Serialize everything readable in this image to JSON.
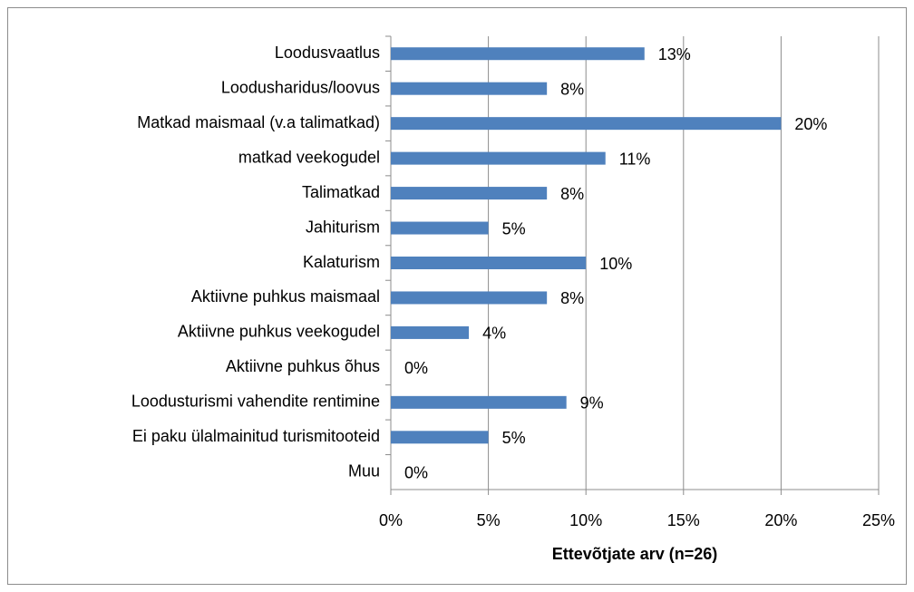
{
  "chart_data": {
    "type": "barh",
    "xlabel": "Ettevõtjate arv (n=26)",
    "categories": [
      "Loodusvaatlus",
      "Loodusharidus/loovus",
      "Matkad maismaal (v.a talimatkad)",
      "matkad veekogudel",
      "Talimatkad",
      "Jahiturism",
      "Kalaturism",
      "Aktiivne puhkus maismaal",
      "Aktiivne puhkus veekogudel",
      "Aktiivne puhkus õhus",
      "Loodusturismi vahendite rentimine",
      "Ei paku ülalmainitud turismitooteid",
      "Muu"
    ],
    "values": [
      13,
      8,
      20,
      11,
      8,
      5,
      10,
      8,
      4,
      0,
      9,
      5,
      0
    ],
    "value_labels": [
      "13%",
      "8%",
      "20%",
      "11%",
      "8%",
      "5%",
      "10%",
      "8%",
      "4%",
      "0%",
      "9%",
      "5%",
      "0%"
    ],
    "color": "#4f81bd",
    "xlim": [
      0,
      25
    ],
    "xticks": [
      {
        "value": 0,
        "label": "0%"
      },
      {
        "value": 5,
        "label": "5%"
      },
      {
        "value": 10,
        "label": "10%"
      },
      {
        "value": 15,
        "label": "15%"
      },
      {
        "value": 20,
        "label": "20%"
      },
      {
        "value": 25,
        "label": "25%"
      }
    ],
    "grid": true
  }
}
